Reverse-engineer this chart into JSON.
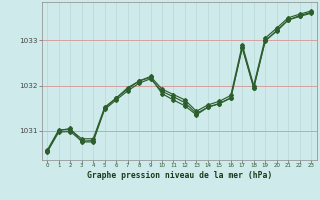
{
  "title": "Graphe pression niveau de la mer (hPa)",
  "background_color": "#ceeaea",
  "grid_color_h": "#d4a0a0",
  "grid_color_v": "#b8d8d8",
  "line_color": "#2d5e2d",
  "xlim": [
    -0.5,
    23.5
  ],
  "ylim": [
    1030.35,
    1033.85
  ],
  "yticks": [
    1031,
    1032,
    1033
  ],
  "xticks": [
    0,
    1,
    2,
    3,
    4,
    5,
    6,
    7,
    8,
    9,
    10,
    11,
    12,
    13,
    14,
    15,
    16,
    17,
    18,
    19,
    20,
    21,
    22,
    23
  ],
  "y_zigzag": [
    1030.55,
    1031.0,
    1031.05,
    1030.75,
    1030.75,
    1031.5,
    1031.72,
    1031.92,
    1032.1,
    1032.18,
    1031.82,
    1031.68,
    1031.55,
    1031.35,
    1031.52,
    1031.6,
    1031.72,
    1032.85,
    1031.95,
    1032.98,
    1033.22,
    1033.45,
    1033.55,
    1033.62
  ],
  "y_smooth1": [
    1030.57,
    1031.02,
    1031.02,
    1030.82,
    1030.82,
    1031.52,
    1031.72,
    1031.95,
    1032.1,
    1032.2,
    1031.92,
    1031.8,
    1031.68,
    1031.43,
    1031.57,
    1031.65,
    1031.78,
    1032.9,
    1032.0,
    1033.05,
    1033.27,
    1033.5,
    1033.58,
    1033.65
  ],
  "y_smooth2": [
    1030.53,
    1030.97,
    1030.98,
    1030.77,
    1030.78,
    1031.47,
    1031.68,
    1031.88,
    1032.05,
    1032.15,
    1031.87,
    1031.75,
    1031.62,
    1031.38,
    1031.52,
    1031.6,
    1031.73,
    1032.83,
    1031.95,
    1033.0,
    1033.2,
    1033.45,
    1033.53,
    1033.6
  ]
}
